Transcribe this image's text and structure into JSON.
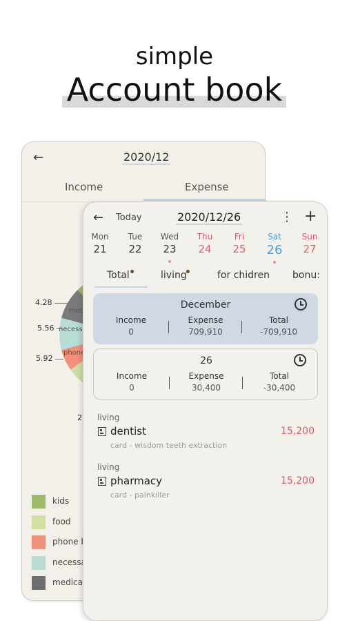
{
  "hero": {
    "subtitle": "simple",
    "title": "Account book"
  },
  "back_screen": {
    "nav_back": "←",
    "month": "2020/12",
    "tabs": [
      "Income",
      "Expense"
    ],
    "pie_labels": [
      "med",
      "necess",
      "phone"
    ],
    "percentages": [
      "4.28",
      "5.56",
      "5.92",
      "2"
    ],
    "legend": [
      {
        "label": "kids",
        "color": "#9dba6a"
      },
      {
        "label": "food",
        "color": "#d2e0a3"
      },
      {
        "label": "phone b",
        "color": "#f3907b"
      },
      {
        "label": "necessa",
        "color": "#b7ddd4"
      },
      {
        "label": "medical",
        "color": "#6e6e6e"
      }
    ]
  },
  "front_screen": {
    "header": {
      "back": "←",
      "today": "Today",
      "date": "2020/12/26",
      "more": "⋮",
      "add": "+"
    },
    "days": [
      {
        "name": "Mon",
        "date": "21",
        "style": "normal"
      },
      {
        "name": "Tue",
        "date": "22",
        "style": "normal"
      },
      {
        "name": "Wed",
        "date": "23",
        "style": "normal",
        "dot": true
      },
      {
        "name": "Thu",
        "date": "24",
        "style": "red"
      },
      {
        "name": "Fri",
        "date": "25",
        "style": "red"
      },
      {
        "name": "Sat",
        "date": "26",
        "style": "blue",
        "selected": true,
        "dot": true
      },
      {
        "name": "Sun",
        "date": "27",
        "style": "red"
      }
    ],
    "category_tabs": [
      {
        "label": "Total",
        "dot": true
      },
      {
        "label": "living",
        "dot": true
      },
      {
        "label": "for chidren",
        "dot": false
      },
      {
        "label": "bonu:",
        "dot": false
      }
    ],
    "month_summary": {
      "title": "December",
      "income_label": "Income",
      "income_value": "0",
      "expense_label": "Expense",
      "expense_value": "709,910",
      "total_label": "Total",
      "total_value": "-709,910"
    },
    "day_summary": {
      "title": "26",
      "income_label": "Income",
      "income_value": "0",
      "expense_label": "Expense",
      "expense_value": "30,400",
      "total_label": "Total",
      "total_value": "-30,400"
    },
    "entries": [
      {
        "category": "living",
        "name": "dentist",
        "amount": "15,200",
        "note": "card - wisdom teeth extraction"
      },
      {
        "category": "living",
        "name": "pharmacy",
        "amount": "15,200",
        "note": "card - painkiller"
      }
    ],
    "colors": {
      "red": "#e05a6a",
      "blue": "#4a9be6",
      "card_blue": "#cfd8e3"
    }
  }
}
